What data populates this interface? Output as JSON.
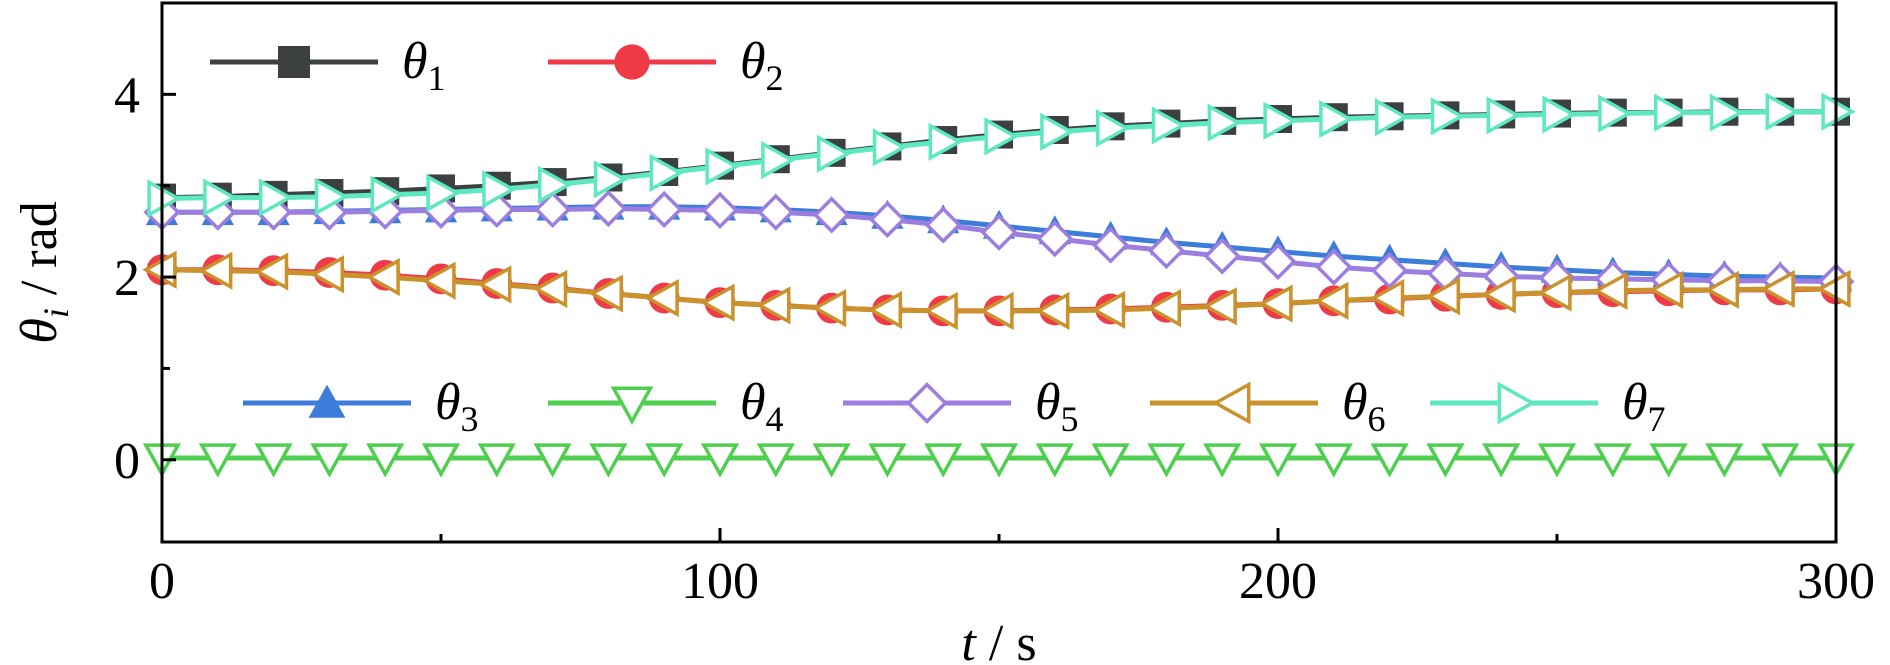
{
  "chart_data": {
    "type": "line",
    "title": "",
    "xlabel": {
      "var": "t",
      "sep": " / ",
      "unit": "s"
    },
    "ylabel": {
      "var": "θ",
      "sub": "i",
      "sep": " / ",
      "unit": "rad"
    },
    "xlim": [
      0,
      300
    ],
    "ylim": [
      -0.9,
      5
    ],
    "x_ticks": [
      0,
      100,
      200,
      300
    ],
    "x_tick_labels": [
      "0",
      "100",
      "200",
      "300"
    ],
    "x_minor_ticks": [
      50,
      150,
      250
    ],
    "y_ticks": [
      0,
      2,
      4
    ],
    "y_tick_labels": [
      "0",
      "2",
      "4"
    ],
    "y_minor_ticks": [
      1,
      3
    ],
    "grid": false,
    "legend": [
      "top-left",
      "lower-middle"
    ],
    "x": [
      0,
      10,
      20,
      30,
      40,
      50,
      60,
      70,
      80,
      90,
      100,
      110,
      120,
      130,
      140,
      150,
      160,
      170,
      180,
      190,
      200,
      210,
      220,
      230,
      240,
      250,
      260,
      270,
      280,
      290,
      300
    ],
    "series": [
      {
        "name": "θ",
        "sub": "1",
        "color": "#3d4040",
        "marker": "square",
        "values": [
          2.87,
          2.88,
          2.9,
          2.92,
          2.94,
          2.97,
          3.0,
          3.04,
          3.09,
          3.15,
          3.22,
          3.29,
          3.36,
          3.43,
          3.5,
          3.56,
          3.61,
          3.65,
          3.68,
          3.71,
          3.73,
          3.75,
          3.76,
          3.77,
          3.78,
          3.79,
          3.8,
          3.8,
          3.81,
          3.81,
          3.81
        ]
      },
      {
        "name": "θ",
        "sub": "2",
        "color": "#f03a47",
        "marker": "circle",
        "values": [
          2.08,
          2.08,
          2.07,
          2.05,
          2.02,
          1.98,
          1.93,
          1.88,
          1.82,
          1.77,
          1.72,
          1.69,
          1.66,
          1.64,
          1.63,
          1.63,
          1.64,
          1.65,
          1.67,
          1.69,
          1.71,
          1.74,
          1.76,
          1.79,
          1.81,
          1.83,
          1.84,
          1.85,
          1.86,
          1.86,
          1.87
        ]
      },
      {
        "name": "θ",
        "sub": "3",
        "color": "#3b7dd8",
        "marker": "triangle-up",
        "values": [
          2.71,
          2.71,
          2.71,
          2.72,
          2.73,
          2.74,
          2.75,
          2.76,
          2.77,
          2.77,
          2.76,
          2.74,
          2.71,
          2.67,
          2.62,
          2.56,
          2.5,
          2.44,
          2.38,
          2.33,
          2.28,
          2.23,
          2.19,
          2.15,
          2.11,
          2.08,
          2.05,
          2.03,
          2.01,
          2.0,
          1.99
        ]
      },
      {
        "name": "θ",
        "sub": "4",
        "color": "#4fcf4f",
        "marker": "triangle-down",
        "values": [
          0.02,
          0.02,
          0.02,
          0.02,
          0.02,
          0.02,
          0.02,
          0.02,
          0.02,
          0.02,
          0.02,
          0.02,
          0.02,
          0.02,
          0.02,
          0.02,
          0.02,
          0.02,
          0.02,
          0.02,
          0.02,
          0.02,
          0.02,
          0.02,
          0.02,
          0.02,
          0.02,
          0.02,
          0.02,
          0.02,
          0.02
        ]
      },
      {
        "name": "θ",
        "sub": "5",
        "color": "#9b7ee0",
        "marker": "diamond",
        "values": [
          2.71,
          2.71,
          2.71,
          2.71,
          2.72,
          2.73,
          2.74,
          2.74,
          2.75,
          2.74,
          2.73,
          2.71,
          2.68,
          2.63,
          2.57,
          2.49,
          2.42,
          2.35,
          2.29,
          2.23,
          2.17,
          2.11,
          2.07,
          2.04,
          2.01,
          1.99,
          1.98,
          1.97,
          1.96,
          1.96,
          1.95
        ]
      },
      {
        "name": "θ",
        "sub": "6",
        "color": "#c9922c",
        "marker": "triangle-left",
        "values": [
          2.08,
          2.07,
          2.06,
          2.03,
          2.0,
          1.96,
          1.92,
          1.87,
          1.82,
          1.77,
          1.72,
          1.69,
          1.66,
          1.64,
          1.63,
          1.63,
          1.63,
          1.64,
          1.66,
          1.68,
          1.71,
          1.74,
          1.77,
          1.79,
          1.81,
          1.83,
          1.85,
          1.86,
          1.86,
          1.87,
          1.87
        ]
      },
      {
        "name": "θ",
        "sub": "7",
        "color": "#5ee8c0",
        "marker": "triangle-right",
        "values": [
          2.86,
          2.87,
          2.87,
          2.88,
          2.9,
          2.92,
          2.96,
          3.01,
          3.07,
          3.14,
          3.21,
          3.28,
          3.35,
          3.42,
          3.48,
          3.54,
          3.59,
          3.63,
          3.66,
          3.69,
          3.71,
          3.73,
          3.75,
          3.76,
          3.77,
          3.78,
          3.79,
          3.8,
          3.8,
          3.81,
          3.81
        ]
      }
    ]
  }
}
